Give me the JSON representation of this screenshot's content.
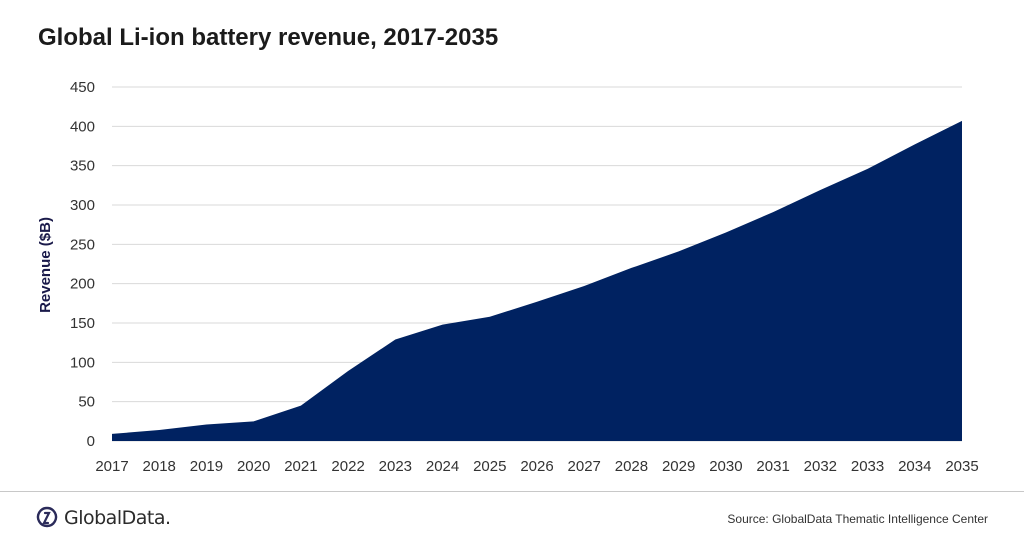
{
  "title": "Global Li-ion battery revenue, 2017-2035",
  "footer": {
    "logo_text": "GlobalData.",
    "source": "Source: GlobalData Thematic Intelligence Center"
  },
  "colors": {
    "area": "#002261",
    "grid": "#d9d9d9",
    "text": "#333333"
  },
  "chart_data": {
    "type": "area",
    "title": "Global Li-ion battery revenue, 2017-2035",
    "xlabel": "",
    "ylabel": "Revenue ($B)",
    "ylim": [
      0,
      450
    ],
    "yticks": [
      0,
      50,
      100,
      150,
      200,
      250,
      300,
      350,
      400,
      450
    ],
    "grid": true,
    "legend": "none",
    "categories": [
      "2017",
      "2018",
      "2019",
      "2020",
      "2021",
      "2022",
      "2023",
      "2024",
      "2025",
      "2026",
      "2027",
      "2028",
      "2029",
      "2030",
      "2031",
      "2032",
      "2033",
      "2034",
      "2035"
    ],
    "series": [
      {
        "values": [
          9,
          14,
          21,
          25,
          45,
          89,
          129,
          148,
          158,
          177,
          197,
          220,
          241,
          265,
          291,
          319,
          346,
          377,
          407
        ]
      }
    ]
  }
}
